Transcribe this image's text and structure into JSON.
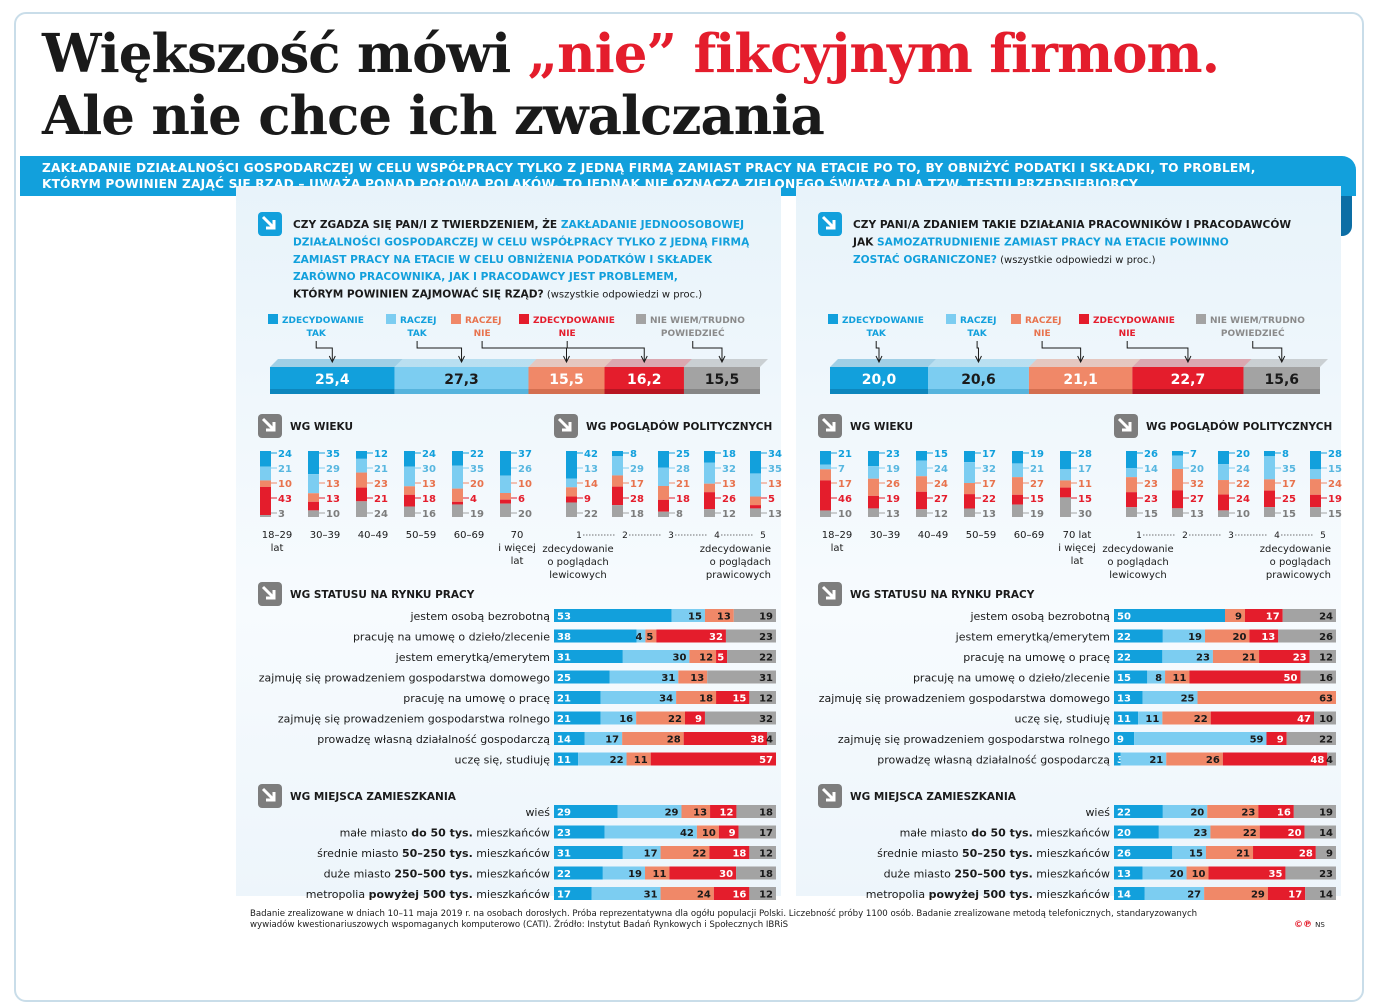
{
  "title_line1_a": "Większość mówi ",
  "title_line1_b": "„nie” fikcyjnym firmom.",
  "title_line2": "Ale nie chce ich zwalczania",
  "lead_line1": "ZAKŁADANIE DZIAŁALNOŚCI GOSPODARCZEJ W CELU WSPÓŁPRACY TYLKO Z JEDNĄ FIRMĄ ZAMIAST PRACY NA ETACIE PO TO, BY OBNIŻYĆ PODATKI I SKŁADKI, TO PROBLEM,",
  "lead_line2": "KTÓRYM POWINIEN ZAJĄĆ SIĘ RZĄD – UWAŻA PONAD POŁOWA POLAKÓW. TO JEDNAK NIE OZNACZA ZIELONEGO ŚWIATŁA DLA TZW. TESTU PRZEDSIĘBIORCY",
  "colors": {
    "c1": "#12a0dc",
    "c2": "#7ccdf1",
    "c3": "#f08868",
    "c4": "#e41d2c",
    "c5": "#a3a3a3"
  },
  "panels": [
    {
      "id": "left",
      "question": [
        [
          [
            "CZY ZGADZA SIĘ PAN/I Z TWIERDZENIEM, ŻE ",
            "k"
          ],
          [
            "ZAKŁADANIE JEDNOOSOBOWEJ",
            "b"
          ]
        ],
        [
          [
            "DZIAŁALNOŚCI GOSPODARCZEJ W CELU WSPÓŁPRACY TYLKO Z JEDNĄ FIRMĄ",
            "b"
          ]
        ],
        [
          [
            "ZAMIAST PRACY NA ETACIE W CELU OBNIŻENIA PODATKÓW I SKŁADEK",
            "b"
          ]
        ],
        [
          [
            "ZARÓWNO PRACOWNIKA, JAK I PRACODAWCY JEST PROBLEMEM,",
            "b"
          ]
        ],
        [
          [
            "KTÓRYM POWINIEN ZAJMOWAĆ SIĘ RZĄD?",
            "k"
          ],
          [
            " (wszystkie odpowiedzi w proc.)",
            "n"
          ]
        ]
      ],
      "legend": [
        [
          "ZDECYDOWANIE",
          "TAK"
        ],
        [
          "RACZEJ",
          "TAK"
        ],
        [
          "RACZEJ",
          "NIE"
        ],
        [
          "ZDECYDOWANIE",
          "NIE"
        ],
        [
          "NIE WIEM/TRUDNO",
          "POWIEDZIEĆ"
        ]
      ],
      "overall": [
        "25,4",
        "27,3",
        "15,5",
        "16,2",
        "15,5"
      ],
      "overall_values": [
        25.4,
        27.3,
        15.5,
        16.2,
        15.5
      ],
      "age_title": "WG WIEKU",
      "age": [
        [
          24,
          21,
          10,
          43,
          3
        ],
        [
          35,
          29,
          13,
          13,
          10
        ],
        [
          12,
          21,
          23,
          21,
          24
        ],
        [
          24,
          30,
          13,
          18,
          16
        ],
        [
          22,
          35,
          20,
          4,
          19
        ],
        [
          37,
          26,
          10,
          6,
          20
        ]
      ],
      "age_labels": [
        [
          "18–29",
          "lat"
        ],
        [
          "30–39"
        ],
        [
          "40–49"
        ],
        [
          "50–59"
        ],
        [
          "60–69"
        ],
        [
          "70",
          "i więcej",
          "lat"
        ]
      ],
      "pol_title": "WG POGLĄDÓW POLITYCZNYCH",
      "pol": [
        [
          42,
          13,
          14,
          9,
          22
        ],
        [
          8,
          29,
          17,
          28,
          18
        ],
        [
          25,
          28,
          21,
          18,
          8
        ],
        [
          18,
          32,
          13,
          26,
          12
        ],
        [
          34,
          35,
          13,
          5,
          13
        ]
      ],
      "pol_ticks": [
        "1",
        "2",
        "3",
        "4",
        "5"
      ],
      "pol_left": [
        "zdecydowanie",
        "o poglądach",
        "lewicowych"
      ],
      "pol_right": [
        "zdecydowanie",
        "o poglądach",
        "prawicowych"
      ],
      "status_title": "WG STATUSU NA RYNKU PRACY",
      "status": [
        [
          "jestem osobą bezrobotną",
          [
            53,
            15,
            13,
            0,
            19
          ],
          [
            "53",
            "15",
            "13",
            "",
            "19"
          ]
        ],
        [
          "pracuję na umowę o dzieło/zlecenie",
          [
            38,
            4,
            5,
            32,
            23
          ],
          [
            "38",
            "4",
            "5",
            "32",
            "23"
          ]
        ],
        [
          "jestem emerytką/emerytem",
          [
            31,
            30,
            12,
            5,
            22
          ],
          [
            "31",
            "30",
            "12",
            "5",
            "22"
          ]
        ],
        [
          "zajmuję się prowadzeniem gospodarstwa domowego",
          [
            25,
            31,
            13,
            0,
            31
          ],
          [
            "25",
            "31",
            "13",
            "",
            "31"
          ]
        ],
        [
          "pracuję na umowę o pracę",
          [
            21,
            34,
            18,
            15,
            12
          ],
          [
            "21",
            "34",
            "18",
            "15",
            "12"
          ]
        ],
        [
          "zajmuję się prowadzeniem gospodarstwa rolnego",
          [
            21,
            16,
            22,
            9,
            32
          ],
          [
            "21",
            "16",
            "22",
            "9",
            "32"
          ]
        ],
        [
          "prowadzę własną działalność gospodarczą",
          [
            14,
            17,
            28,
            38,
            4
          ],
          [
            "14",
            "17",
            "28",
            "38",
            "4"
          ]
        ],
        [
          "uczę się, studiuję",
          [
            11,
            22,
            11,
            57,
            0
          ],
          [
            "11",
            "22",
            "11",
            "57",
            ""
          ]
        ]
      ],
      "place_title": "WG MIEJSCA ZAMIESZKANIA",
      "place": [
        [
          [
            "wieś",
            "",
            ""
          ],
          [
            29,
            29,
            13,
            12,
            18
          ],
          [
            "29",
            "29",
            "13",
            "12",
            "18"
          ]
        ],
        [
          [
            "małe miasto ",
            "do 50 tys.",
            " mieszkańców"
          ],
          [
            23,
            42,
            10,
            9,
            17
          ],
          [
            "23",
            "42",
            "10",
            "9",
            "17"
          ]
        ],
        [
          [
            "średnie miasto ",
            "50–250 tys.",
            " mieszkańców"
          ],
          [
            31,
            17,
            22,
            18,
            12
          ],
          [
            "31",
            "17",
            "22",
            "18",
            "12"
          ]
        ],
        [
          [
            "duże miasto ",
            "250–500 tys.",
            " mieszkańców"
          ],
          [
            22,
            19,
            11,
            30,
            18
          ],
          [
            "22",
            "19",
            "11",
            "30",
            "18"
          ]
        ],
        [
          [
            "metropolia ",
            "powyżej 500 tys.",
            " mieszkańców"
          ],
          [
            17,
            31,
            24,
            16,
            12
          ],
          [
            "17",
            "31",
            "24",
            "16",
            "12"
          ]
        ]
      ]
    },
    {
      "id": "right",
      "question": [
        [
          [
            "CZY PANI/A ZDANIEM TAKIE DZIAŁANIA PRACOWNIKÓW I PRACODAWCÓW",
            "k"
          ]
        ],
        [
          [
            "JAK ",
            "k"
          ],
          [
            "SAMOZATRUDNIENIE ZAMIAST PRACY NA ETACIE POWINNO",
            "b"
          ]
        ],
        [
          [
            "ZOSTAĆ OGRANICZONE?",
            "b"
          ],
          [
            " (wszystkie odpowiedzi w proc.)",
            "n"
          ]
        ]
      ],
      "legend": [
        [
          "ZDECYDOWANIE",
          "TAK"
        ],
        [
          "RACZEJ",
          "TAK"
        ],
        [
          "RACZEJ",
          "NIE"
        ],
        [
          "ZDECYDOWANIE",
          "NIE"
        ],
        [
          "NIE WIEM/TRUDNO",
          "POWIEDZIEĆ"
        ]
      ],
      "overall": [
        "20,0",
        "20,6",
        "21,1",
        "22,7",
        "15,6"
      ],
      "overall_values": [
        20.0,
        20.6,
        21.1,
        22.7,
        15.6
      ],
      "age_title": "WG WIEKU",
      "age": [
        [
          21,
          7,
          17,
          46,
          10
        ],
        [
          23,
          19,
          26,
          19,
          13
        ],
        [
          15,
          24,
          24,
          27,
          12
        ],
        [
          17,
          32,
          17,
          22,
          13
        ],
        [
          19,
          21,
          27,
          15,
          19
        ],
        [
          28,
          17,
          11,
          15,
          30
        ]
      ],
      "age_labels": [
        [
          "18–29",
          "lat"
        ],
        [
          "30–39"
        ],
        [
          "40–49"
        ],
        [
          "50–59"
        ],
        [
          "60–69"
        ],
        [
          "70 lat",
          "i więcej",
          "lat"
        ]
      ],
      "pol_title": "WG POGLĄDÓW POLITYCZNYCH",
      "pol": [
        [
          26,
          14,
          23,
          23,
          15
        ],
        [
          7,
          20,
          32,
          27,
          13
        ],
        [
          20,
          24,
          22,
          24,
          10
        ],
        [
          8,
          35,
          17,
          25,
          15
        ],
        [
          28,
          15,
          24,
          19,
          15
        ]
      ],
      "pol_ticks": [
        "1",
        "2",
        "3",
        "4",
        "5"
      ],
      "pol_left": [
        "zdecydowanie",
        "o poglądach",
        "lewicowych"
      ],
      "pol_right": [
        "zdecydowanie",
        "o poglądach",
        "prawicowych"
      ],
      "status_title": "WG STATUSU NA RYNKU PRACY",
      "status": [
        [
          "jestem osobą bezrobotną",
          [
            50,
            0,
            9,
            17,
            24
          ],
          [
            "50",
            "",
            "9",
            "17",
            "24"
          ]
        ],
        [
          "jestem emerytką/emerytem",
          [
            22,
            19,
            20,
            13,
            26
          ],
          [
            "22",
            "19",
            "20",
            "13",
            "26"
          ]
        ],
        [
          "pracuję na umowę o pracę",
          [
            22,
            23,
            21,
            23,
            12
          ],
          [
            "22",
            "23",
            "21",
            "23",
            "12"
          ]
        ],
        [
          "pracuję na umowę o dzieło/zlecenie",
          [
            15,
            8,
            11,
            50,
            16
          ],
          [
            "15",
            "8",
            "11",
            "50",
            "16"
          ]
        ],
        [
          "zajmuję się prowadzeniem gospodarstwa domowego",
          [
            13,
            25,
            63,
            0,
            0
          ],
          [
            "13",
            "25",
            "63",
            "",
            ""
          ]
        ],
        [
          "uczę się, studiuję",
          [
            11,
            11,
            22,
            47,
            10
          ],
          [
            "11",
            "11",
            "22",
            "47",
            "10"
          ]
        ],
        [
          "zajmuję się prowadzeniem gospodarstwa rolnego",
          [
            9,
            59,
            0,
            9,
            22
          ],
          [
            "9",
            "59",
            "",
            "9",
            "22"
          ]
        ],
        [
          "prowadzę własną działalność gospodarczą",
          [
            3,
            21,
            26,
            48,
            4
          ],
          [
            "3",
            "21",
            "26",
            "48",
            "4"
          ]
        ]
      ],
      "place_title": "WG MIEJSCA ZAMIESZKANIA",
      "place": [
        [
          [
            "wieś",
            "",
            ""
          ],
          [
            22,
            20,
            23,
            16,
            19
          ],
          [
            "22",
            "20",
            "23",
            "16",
            "19"
          ]
        ],
        [
          [
            "małe miasto ",
            "do 50 tys.",
            " mieszkańców"
          ],
          [
            20,
            23,
            22,
            20,
            14
          ],
          [
            "20",
            "23",
            "22",
            "20",
            "14"
          ]
        ],
        [
          [
            "średnie miasto ",
            "50–250 tys.",
            " mieszkańców"
          ],
          [
            26,
            15,
            21,
            28,
            9
          ],
          [
            "26",
            "15",
            "21",
            "28",
            "9"
          ]
        ],
        [
          [
            "duże miasto ",
            "250–500 tys.",
            " mieszkańców"
          ],
          [
            13,
            20,
            10,
            35,
            23
          ],
          [
            "13",
            "20",
            "10",
            "35",
            "23"
          ]
        ],
        [
          [
            "metropolia ",
            "powyżej 500 tys.",
            " mieszkańców"
          ],
          [
            14,
            27,
            29,
            17,
            14
          ],
          [
            "14",
            "27",
            "29",
            "17",
            "14"
          ]
        ]
      ]
    }
  ],
  "footer_line1": "Badanie zrealizowane w dniach 10–11 maja 2019 r. na osobach dorosłych. Próba reprezentatywna dla ogółu populacji Polski. Liczebność próby 1100 osób. Badanie zrealizowane metodą telefonicznych, standaryzowanych",
  "footer_line2": "wywiadów kwestionariuszowych wspomaganych komputerowo (CATI). Źródło: Instytut Badań Rynkowych i Społecznych IBRiS",
  "copyright": "©℗",
  "copyright_tag": "NS",
  "chart_data": [
    {
      "type": "bar",
      "title": "Czy zgadza się Pan/i z twierdzeniem, że zakładanie jednoosobowej działalności gospodarczej ... jest problemem, którym powinien zajmować się rząd? (w proc.)",
      "series_names": [
        "ZDECYDOWANIE TAK",
        "RACZEJ TAK",
        "RACZEJ NIE",
        "ZDECYDOWANIE NIE",
        "NIE WIEM/TRUDNO POWIEDZIEĆ"
      ],
      "values": [
        25.4,
        27.3,
        15.5,
        16.2,
        15.5
      ],
      "stacked": true
    },
    {
      "type": "bar",
      "title": "Czy Pani/a zdaniem takie działania ... jak samozatrudnienie zamiast pracy na etacie powinno zostać ograniczone? (w proc.)",
      "series_names": [
        "ZDECYDOWANIE TAK",
        "RACZEJ TAK",
        "RACZEJ NIE",
        "ZDECYDOWANIE NIE",
        "NIE WIEM/TRUDNO POWIEDZIEĆ"
      ],
      "values": [
        20.0,
        20.6,
        21.1,
        22.7,
        15.6
      ],
      "stacked": true
    }
  ]
}
